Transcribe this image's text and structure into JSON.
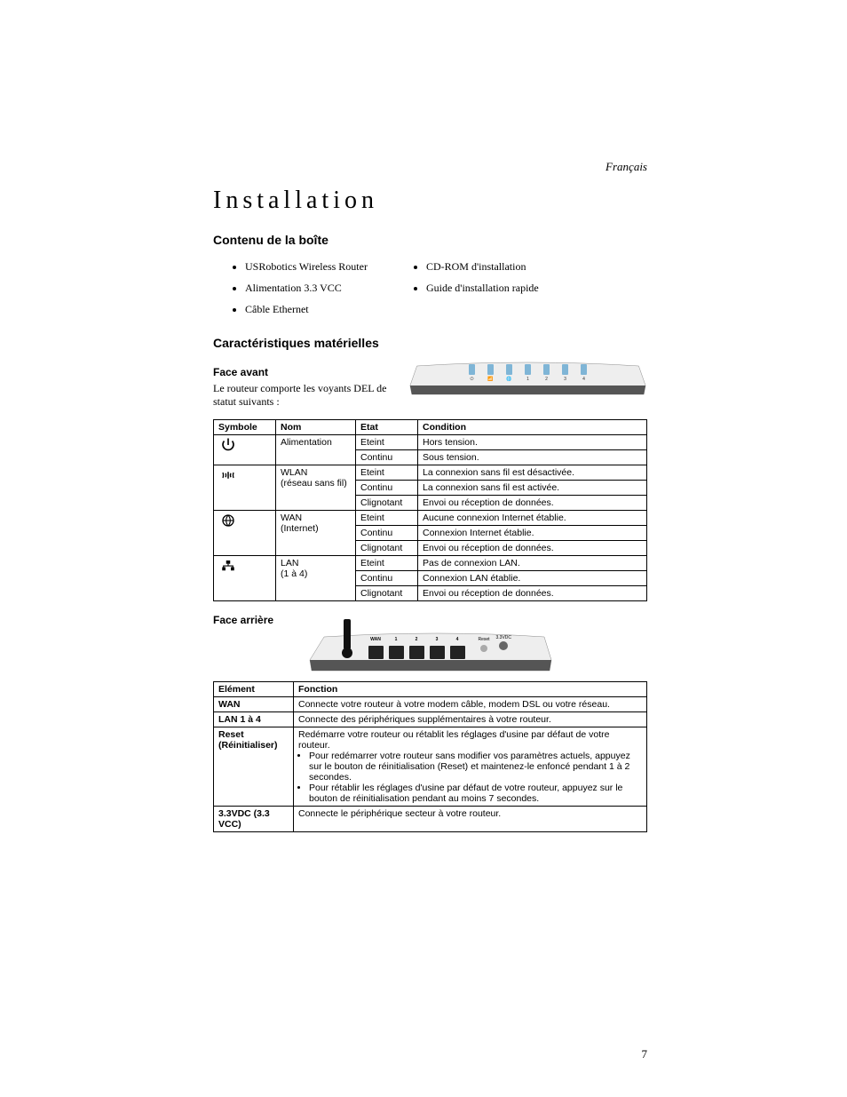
{
  "language_label": "Français",
  "page_number": "7",
  "title": "Installation",
  "section_box": "Contenu de la boîte",
  "box_col1": [
    "USRobotics Wireless Router",
    "Alimentation 3.3 VCC",
    "Câble Ethernet"
  ],
  "box_col2": [
    "CD-ROM d'installation",
    "Guide d'installation rapide"
  ],
  "section_features": "Caractéristiques matérielles",
  "sub_front": "Face avant",
  "front_intro": "Le routeur comporte les voyants DEL de statut suivants :",
  "status_headers": {
    "sym": "Symbole",
    "nom": "Nom",
    "etat": "Etat",
    "cond": "Condition"
  },
  "front_leds": [
    "⏻",
    "📶",
    "🌐",
    "1",
    "2",
    "3",
    "4"
  ],
  "status_rows": [
    {
      "icon": "power",
      "name": "Alimentation",
      "states": [
        {
          "s": "Eteint",
          "c": "Hors tension."
        },
        {
          "s": "Continu",
          "c": "Sous tension."
        }
      ]
    },
    {
      "icon": "wlan",
      "name": "WLAN\n(réseau sans fil)",
      "states": [
        {
          "s": "Eteint",
          "c": "La connexion sans fil est désactivée."
        },
        {
          "s": "Continu",
          "c": "La connexion sans fil est activée."
        },
        {
          "s": "Clignotant",
          "c": "Envoi ou réception de données."
        }
      ]
    },
    {
      "icon": "wan",
      "name": "WAN\n(Internet)",
      "states": [
        {
          "s": "Eteint",
          "c": "Aucune connexion Internet établie."
        },
        {
          "s": "Continu",
          "c": "Connexion Internet établie."
        },
        {
          "s": "Clignotant",
          "c": "Envoi ou réception de données."
        }
      ]
    },
    {
      "icon": "lan",
      "name": "LAN\n(1 à 4)",
      "states": [
        {
          "s": "Eteint",
          "c": "Pas de connexion LAN."
        },
        {
          "s": "Continu",
          "c": "Connexion LAN établie."
        },
        {
          "s": "Clignotant",
          "c": "Envoi ou réception de données."
        }
      ]
    }
  ],
  "sub_back": "Face arrière",
  "back_port_labels": [
    "WAN",
    "1",
    "2",
    "3",
    "4"
  ],
  "back_reset_label": "Reset",
  "back_power_label": "3.3VDC",
  "back_headers": {
    "elem": "Elément",
    "func": "Fonction"
  },
  "back_rows": [
    {
      "e": "WAN",
      "f": "Connecte votre routeur à votre modem câble, modem DSL ou votre réseau."
    },
    {
      "e": "LAN 1 à 4",
      "f": "Connecte des périphériques supplémentaires à votre routeur."
    },
    {
      "e": "Reset (Réinitialiser)",
      "f_intro": "Redémarre votre routeur ou rétablit les réglages d'usine par défaut de votre routeur.",
      "f_list": [
        "Pour redémarrer votre routeur sans modifier vos paramètres actuels, appuyez sur le bouton de réinitialisation (Reset) et maintenez-le enfoncé pendant 1 à 2 secondes.",
        "Pour rétablir les réglages d'usine par défaut de votre routeur, appuyez sur le bouton de réinitialisation pendant au moins 7 secondes."
      ]
    },
    {
      "e": "3.3VDC (3.3 VCC)",
      "f": "Connecte le périphérique secteur à votre routeur."
    }
  ],
  "colors": {
    "led": "#7fb5d6",
    "router_body": "#e8e8e8",
    "router_shadow": "#555555"
  }
}
